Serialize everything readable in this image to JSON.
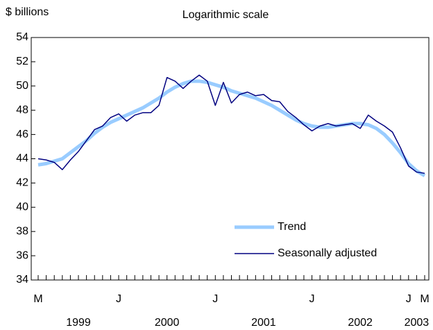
{
  "chart_data": {
    "type": "line",
    "title": "$ billions",
    "subtitle": "Logarithmic scale",
    "categories": [
      "M",
      null,
      null,
      null,
      null,
      null,
      null,
      null,
      null,
      null,
      "J",
      null,
      null,
      null,
      null,
      null,
      null,
      null,
      null,
      null,
      null,
      null,
      "J",
      null,
      null,
      null,
      null,
      null,
      null,
      null,
      null,
      null,
      null,
      null,
      "J",
      null,
      null,
      null,
      null,
      null,
      null,
      null,
      null,
      null,
      null,
      null,
      "J",
      null,
      "M"
    ],
    "years": [
      "1999",
      "2000",
      "2001",
      "2002",
      "2003"
    ],
    "series": [
      {
        "name": "Trend",
        "color": "#99ccff",
        "values": [
          43.5,
          43.6,
          43.8,
          44.0,
          44.5,
          45.0,
          45.5,
          46.1,
          46.6,
          47.0,
          47.3,
          47.6,
          47.9,
          48.2,
          48.6,
          49.0,
          49.5,
          49.9,
          50.2,
          50.4,
          50.4,
          50.3,
          50.1,
          49.9,
          49.6,
          49.4,
          49.2,
          49.0,
          48.7,
          48.4,
          48.0,
          47.6,
          47.2,
          46.9,
          46.7,
          46.6,
          46.6,
          46.7,
          46.8,
          46.9,
          46.9,
          46.8,
          46.5,
          46.0,
          45.3,
          44.5,
          43.6,
          43.0,
          42.6
        ]
      },
      {
        "name": "Seasonally adjusted",
        "color": "#000080",
        "values": [
          44.0,
          43.9,
          43.7,
          43.1,
          43.9,
          44.6,
          45.5,
          46.4,
          46.7,
          47.4,
          47.7,
          47.1,
          47.6,
          47.8,
          47.8,
          48.4,
          50.7,
          50.4,
          49.8,
          50.4,
          50.9,
          50.4,
          48.4,
          50.3,
          48.6,
          49.3,
          49.5,
          49.2,
          49.3,
          48.8,
          48.7,
          47.9,
          47.4,
          46.8,
          46.3,
          46.7,
          46.9,
          46.7,
          46.8,
          46.9,
          46.5,
          47.6,
          47.1,
          46.7,
          46.2,
          44.9,
          43.4,
          42.9,
          42.8
        ]
      }
    ],
    "ylim": [
      34,
      54
    ],
    "yticks": [
      34,
      36,
      38,
      40,
      42,
      44,
      46,
      48,
      50,
      52,
      54
    ],
    "legend": "lower right"
  }
}
